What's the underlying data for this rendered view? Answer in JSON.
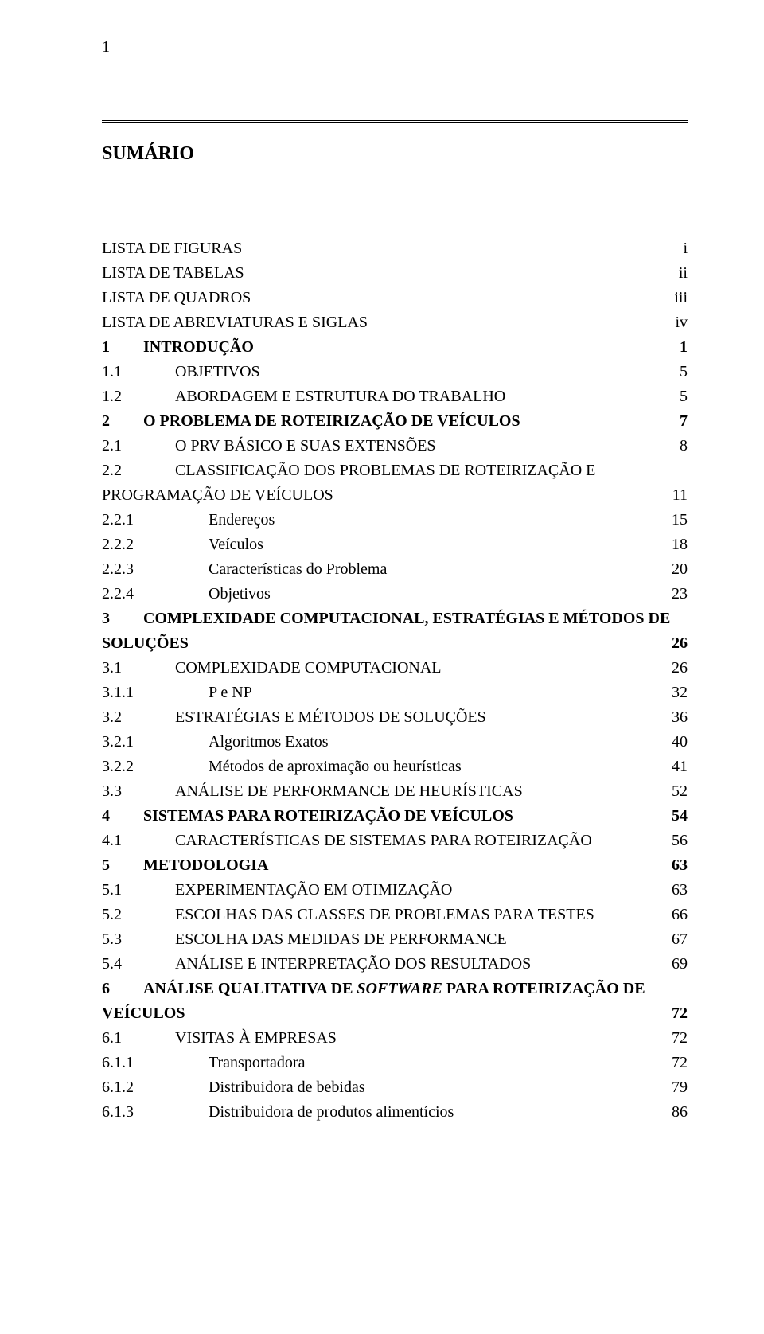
{
  "page_number": "1",
  "title": "SUMÁRIO",
  "entries": [
    {
      "num": "",
      "label": "LISTA DE FIGURAS",
      "page": " i",
      "bold": false,
      "numw": ""
    },
    {
      "num": "",
      "label": "LISTA DE TABELAS",
      "page": " ii",
      "bold": false,
      "numw": ""
    },
    {
      "num": "",
      "label": "LISTA DE QUADROS",
      "page": " iii",
      "bold": false,
      "numw": ""
    },
    {
      "num": "",
      "label": "LISTA DE ABREVIATURAS E SIGLAS",
      "page": "iv",
      "bold": false,
      "numw": ""
    },
    {
      "num": "1",
      "label": "INTRODUÇÃO",
      "page": "1",
      "bold": true,
      "numw": "w1"
    },
    {
      "num": "1.1",
      "label": "OBJETIVOS",
      "page": "5",
      "bold": false,
      "numw": "w2"
    },
    {
      "num": "1.2",
      "label": "ABORDAGEM E ESTRUTURA DO TRABALHO",
      "page": "5",
      "bold": false,
      "numw": "w2"
    },
    {
      "num": "2",
      "label": "O PROBLEMA DE ROTEIRIZAÇÃO DE VEÍCULOS",
      "page": "7",
      "bold": true,
      "numw": "w1"
    },
    {
      "num": "2.1",
      "label": "O PRV BÁSICO E SUAS EXTENSÕES",
      "page": "8",
      "bold": false,
      "numw": "w2"
    },
    {
      "num": "2.2",
      "label": "CLASSIFICAÇÃO DOS PROBLEMAS DE ROTEIRIZAÇÃO E",
      "page": "",
      "bold": false,
      "numw": "w2",
      "noleader": true
    },
    {
      "num": "",
      "label": "PROGRAMAÇÃO DE VEÍCULOS",
      "page": "11",
      "bold": false,
      "numw": ""
    },
    {
      "num": "2.2.1",
      "label": "Endereços",
      "page": "15",
      "bold": false,
      "numw": "w3"
    },
    {
      "num": "2.2.2",
      "label": "Veículos",
      "page": "18",
      "bold": false,
      "numw": "w3"
    },
    {
      "num": "2.2.3",
      "label": "Características do Problema",
      "page": "20",
      "bold": false,
      "numw": "w3"
    },
    {
      "num": "2.2.4",
      "label": "Objetivos",
      "page": "23",
      "bold": false,
      "numw": "w3"
    },
    {
      "num": "3",
      "label": "COMPLEXIDADE COMPUTACIONAL, ESTRATÉGIAS E MÉTODOS DE",
      "page": "",
      "bold": true,
      "numw": "w1",
      "noleader": true
    },
    {
      "num": "",
      "label": "SOLUÇÕES",
      "page": "26",
      "bold": true,
      "numw": ""
    },
    {
      "num": "3.1",
      "label": "COMPLEXIDADE COMPUTACIONAL",
      "page": "26",
      "bold": false,
      "numw": "w2"
    },
    {
      "num": "3.1.1",
      "label": "P e NP",
      "page": "32",
      "bold": false,
      "numw": "w3"
    },
    {
      "num": "3.2",
      "label": "ESTRATÉGIAS E MÉTODOS DE SOLUÇÕES",
      "page": "36",
      "bold": false,
      "numw": "w2"
    },
    {
      "num": "3.2.1",
      "label": "Algoritmos Exatos",
      "page": "40",
      "bold": false,
      "numw": "w3"
    },
    {
      "num": "3.2.2",
      "label": "Métodos de aproximação ou heurísticas",
      "page": "41",
      "bold": false,
      "numw": "w3"
    },
    {
      "num": "3.3",
      "label": "ANÁLISE DE PERFORMANCE DE HEURÍSTICAS",
      "page": "52",
      "bold": false,
      "numw": "w2"
    },
    {
      "num": "4",
      "label": "SISTEMAS PARA ROTEIRIZAÇÃO DE VEÍCULOS",
      "page": "54",
      "bold": true,
      "numw": "w1"
    },
    {
      "num": "4.1",
      "label": "CARACTERÍSTICAS DE SISTEMAS PARA ROTEIRIZAÇÃO",
      "page": "56",
      "bold": false,
      "numw": "w2"
    },
    {
      "num": "5",
      "label": "METODOLOGIA",
      "page": "63",
      "bold": true,
      "numw": "w1"
    },
    {
      "num": "5.1",
      "label": "EXPERIMENTAÇÃO EM OTIMIZAÇÃO",
      "page": "63",
      "bold": false,
      "numw": "w2"
    },
    {
      "num": "5.2",
      "label": "ESCOLHAS DAS CLASSES DE PROBLEMAS PARA TESTES",
      "page": "66",
      "bold": false,
      "numw": "w2"
    },
    {
      "num": "5.3",
      "label": "ESCOLHA DAS MEDIDAS DE PERFORMANCE",
      "page": "67",
      "bold": false,
      "numw": "w2"
    },
    {
      "num": "5.4",
      "label": "ANÁLISE E INTERPRETAÇÃO DOS RESULTADOS",
      "page": "69",
      "bold": false,
      "numw": "w2"
    },
    {
      "num": "6",
      "label_html": "ANÁLISE QUALITATIVA DE <span class=\"italic\">SOFTWARE</span> PARA ROTEIRIZAÇÃO DE",
      "page": "",
      "bold": true,
      "numw": "w1",
      "noleader": true
    },
    {
      "num": "",
      "label": "VEÍCULOS",
      "page": "72",
      "bold": true,
      "numw": ""
    },
    {
      "num": "6.1",
      "label": "VISITAS À EMPRESAS",
      "page": "72",
      "bold": false,
      "numw": "w2"
    },
    {
      "num": "6.1.1",
      "label": "Transportadora",
      "page": "72",
      "bold": false,
      "numw": "w3"
    },
    {
      "num": "6.1.2",
      "label": "Distribuidora de bebidas",
      "page": "79",
      "bold": false,
      "numw": "w3"
    },
    {
      "num": "6.1.3",
      "label": "Distribuidora de produtos alimentícios",
      "page": "86",
      "bold": false,
      "numw": "w3"
    }
  ]
}
